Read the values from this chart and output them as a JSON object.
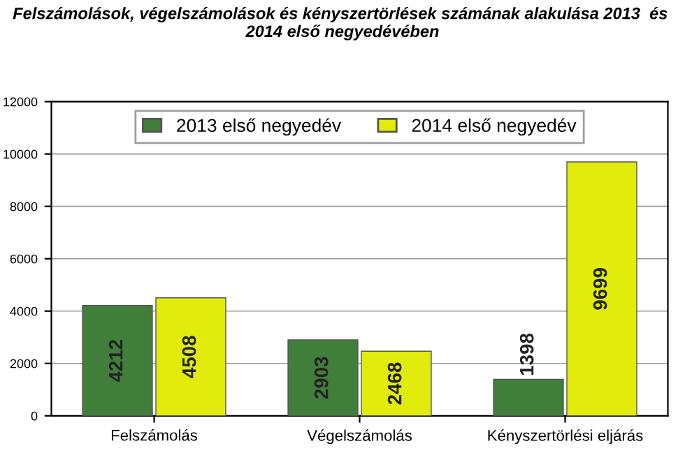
{
  "chart_data": {
    "type": "bar",
    "title": "Felszámolások, végelszámolások és kényszertörlések számának alakulása 2013  és  2014 első negyedévében",
    "categories": [
      "Felszámolás",
      "Végelszámolás",
      "Kényszertörlési eljárás"
    ],
    "series": [
      {
        "name": "2013 első negyedév",
        "color": "#3f7f3a",
        "values": [
          4212,
          2903,
          1398
        ]
      },
      {
        "name": "2014 első negyedév",
        "color": "#e1ec0c",
        "values": [
          4508,
          2468,
          9699
        ]
      }
    ],
    "ylim": [
      0,
      12000
    ],
    "yticks": [
      0,
      2000,
      4000,
      6000,
      8000,
      10000,
      12000
    ],
    "grid": "y",
    "legend": "top",
    "data_labels": true
  }
}
